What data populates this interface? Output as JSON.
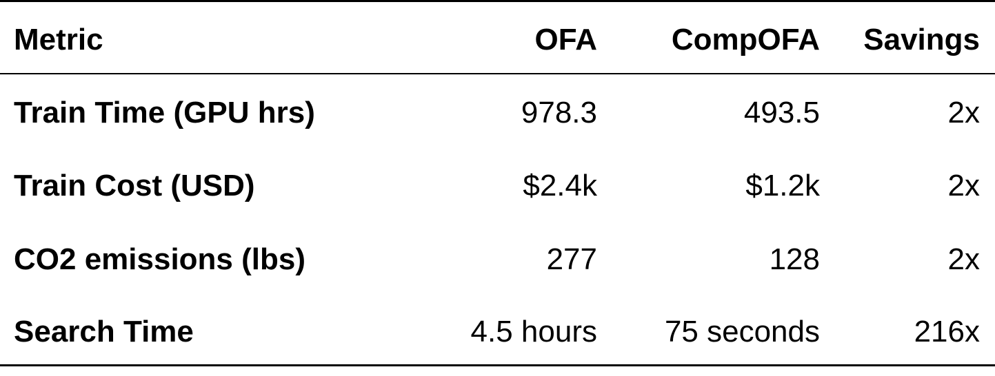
{
  "table": {
    "columns": [
      "Metric",
      "OFA",
      "CompOFA",
      "Savings"
    ],
    "rows": [
      {
        "metric": "Train Time (GPU hrs)",
        "ofa": "978.3",
        "compofa": "493.5",
        "savings": "2x"
      },
      {
        "metric": "Train Cost (USD)",
        "ofa": "$2.4k",
        "compofa": "$1.2k",
        "savings": "2x"
      },
      {
        "metric": "CO2 emissions (lbs)",
        "ofa": "277",
        "compofa": "128",
        "savings": "2x"
      },
      {
        "metric": "Search Time",
        "ofa": "4.5 hours",
        "compofa": "75 seconds",
        "savings": "216x"
      }
    ]
  }
}
